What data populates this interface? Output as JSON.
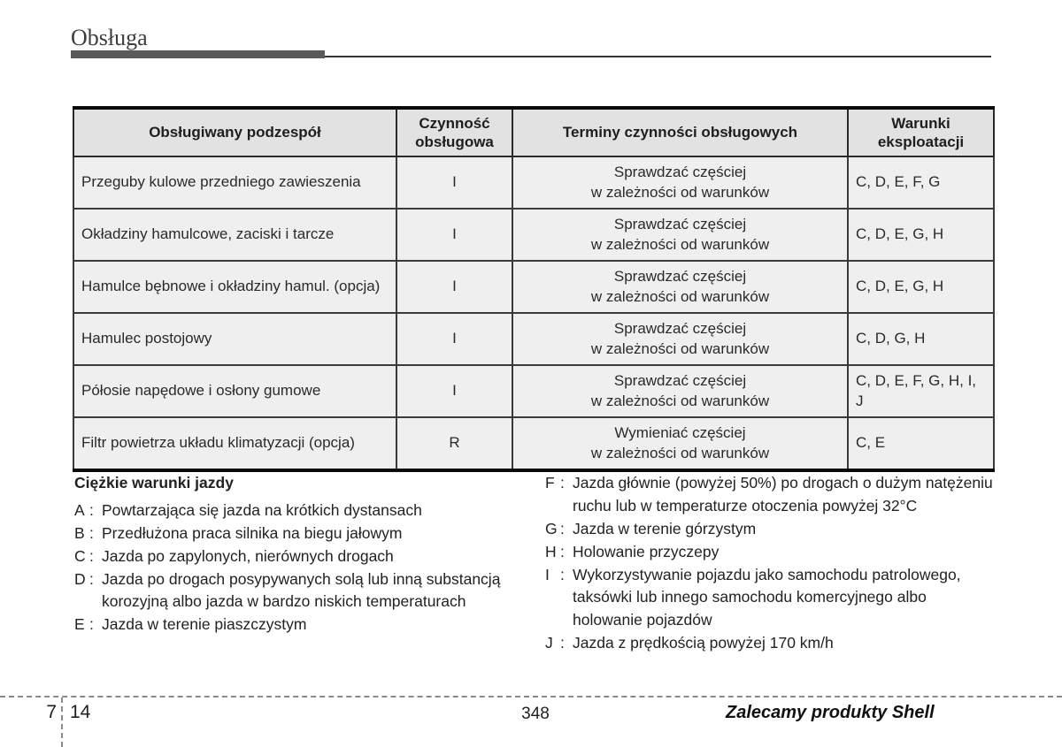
{
  "page": {
    "section_title": "Obsługa",
    "chapter_number": "7",
    "chapter_page": "14",
    "page_number": "348",
    "footer_slogan": "Zalecamy produkty Shell"
  },
  "table": {
    "headers": [
      "Obsługiwany podzespół",
      "Czynność obsługowa",
      "Terminy czynności obsługowych",
      "Warunki eksploatacji"
    ],
    "rows": [
      {
        "component": "Przeguby kulowe przedniego zawieszenia",
        "action": "I",
        "interval_line1": "Sprawdzać częściej",
        "interval_line2": "w zależności od warunków",
        "conditions": "C, D, E, F, G"
      },
      {
        "component": "Okładziny hamulcowe, zaciski i tarcze",
        "action": "I",
        "interval_line1": "Sprawdzać częściej",
        "interval_line2": "w zależności od warunków",
        "conditions": "C, D, E, G, H"
      },
      {
        "component": "Hamulce bębnowe i okładziny hamul. (opcja)",
        "action": "I",
        "interval_line1": "Sprawdzać częściej",
        "interval_line2": "w zależności od warunków",
        "conditions": "C, D, E, G, H"
      },
      {
        "component": "Hamulec postojowy",
        "action": "I",
        "interval_line1": "Sprawdzać częściej",
        "interval_line2": "w zależności od warunków",
        "conditions": "C, D, G, H"
      },
      {
        "component": "Półosie napędowe i osłony gumowe",
        "action": "I",
        "interval_line1": "Sprawdzać częściej",
        "interval_line2": "w zależności od warunków",
        "conditions": "C, D, E, F, G, H, I, J"
      },
      {
        "component": "Filtr powietrza układu klimatyzacji (opcja)",
        "action": "R",
        "interval_line1": "Wymieniać częściej",
        "interval_line2": "w zależności od warunków",
        "conditions": "C, E"
      }
    ]
  },
  "legend": {
    "title": "Ciężkie warunki jazdy",
    "separator": ":",
    "left_items": [
      {
        "letter": "A",
        "text": "Powtarzająca się jazda na krótkich dystansach"
      },
      {
        "letter": "B",
        "text": "Przedłużona praca silnika na biegu jałowym"
      },
      {
        "letter": "C",
        "text": "Jazda po zapylonych, nierównych drogach"
      },
      {
        "letter": "D",
        "text": "Jazda po drogach posypywanych solą lub inną substancją korozyjną albo jazda w bardzo niskich temperaturach"
      },
      {
        "letter": "E",
        "text": "Jazda w terenie piaszczystym"
      }
    ],
    "right_items": [
      {
        "letter": "F",
        "text": "Jazda głównie (powyżej 50%) po drogach o dużym natężeniu ruchu lub w temperaturze otoczenia powyżej 32°C"
      },
      {
        "letter": "G",
        "text": "Jazda w terenie górzystym"
      },
      {
        "letter": "H",
        "text": "Holowanie przyczepy"
      },
      {
        "letter": "I",
        "text": "Wykorzystywanie pojazdu jako samochodu patrolowego, taksówki lub innego samochodu komercyjnego albo holowanie pojazdów"
      },
      {
        "letter": "J",
        "text": "Jazda z prędkością powyżej 170 km/h"
      }
    ]
  },
  "colors": {
    "header_cell_bg": "#e2e2e2",
    "body_cell_bg": "#efefef",
    "rule_bar": "#5a5a5a",
    "dash_line": "#8a8a8a"
  }
}
